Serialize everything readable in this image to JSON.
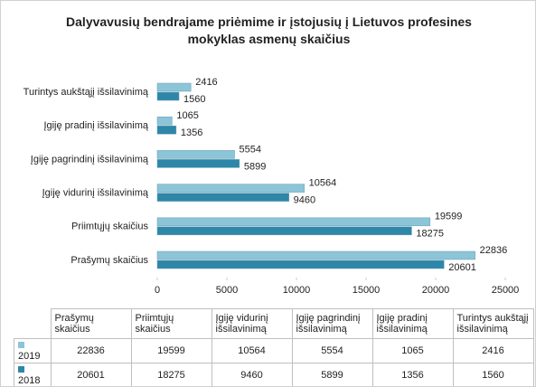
{
  "chart_data": {
    "type": "bar",
    "orientation": "horizontal",
    "title": "Dalyvavusių bendrajame priėmime ir įstojusių į Lietuvos profesines mokyklas asmenų skaičius",
    "categories": [
      "Prašymų skaičius",
      "Priimtųjų skaičius",
      "Įgiję vidurinį išsilavinimą",
      "Įgiję pagrindinį išsilavinimą",
      "Įgiję pradinį išsilavinimą",
      "Turintys aukštąjį išsilavinimą"
    ],
    "series": [
      {
        "name": "2019",
        "color": "#8cc4d8",
        "values": [
          22836,
          19599,
          10564,
          5554,
          1065,
          2416
        ]
      },
      {
        "name": "2018",
        "color": "#2e86a8",
        "values": [
          20601,
          18275,
          9460,
          5899,
          1356,
          1560
        ]
      }
    ],
    "xlim": [
      0,
      25000
    ],
    "xticks": [
      0,
      5000,
      10000,
      15000,
      20000,
      25000
    ]
  }
}
